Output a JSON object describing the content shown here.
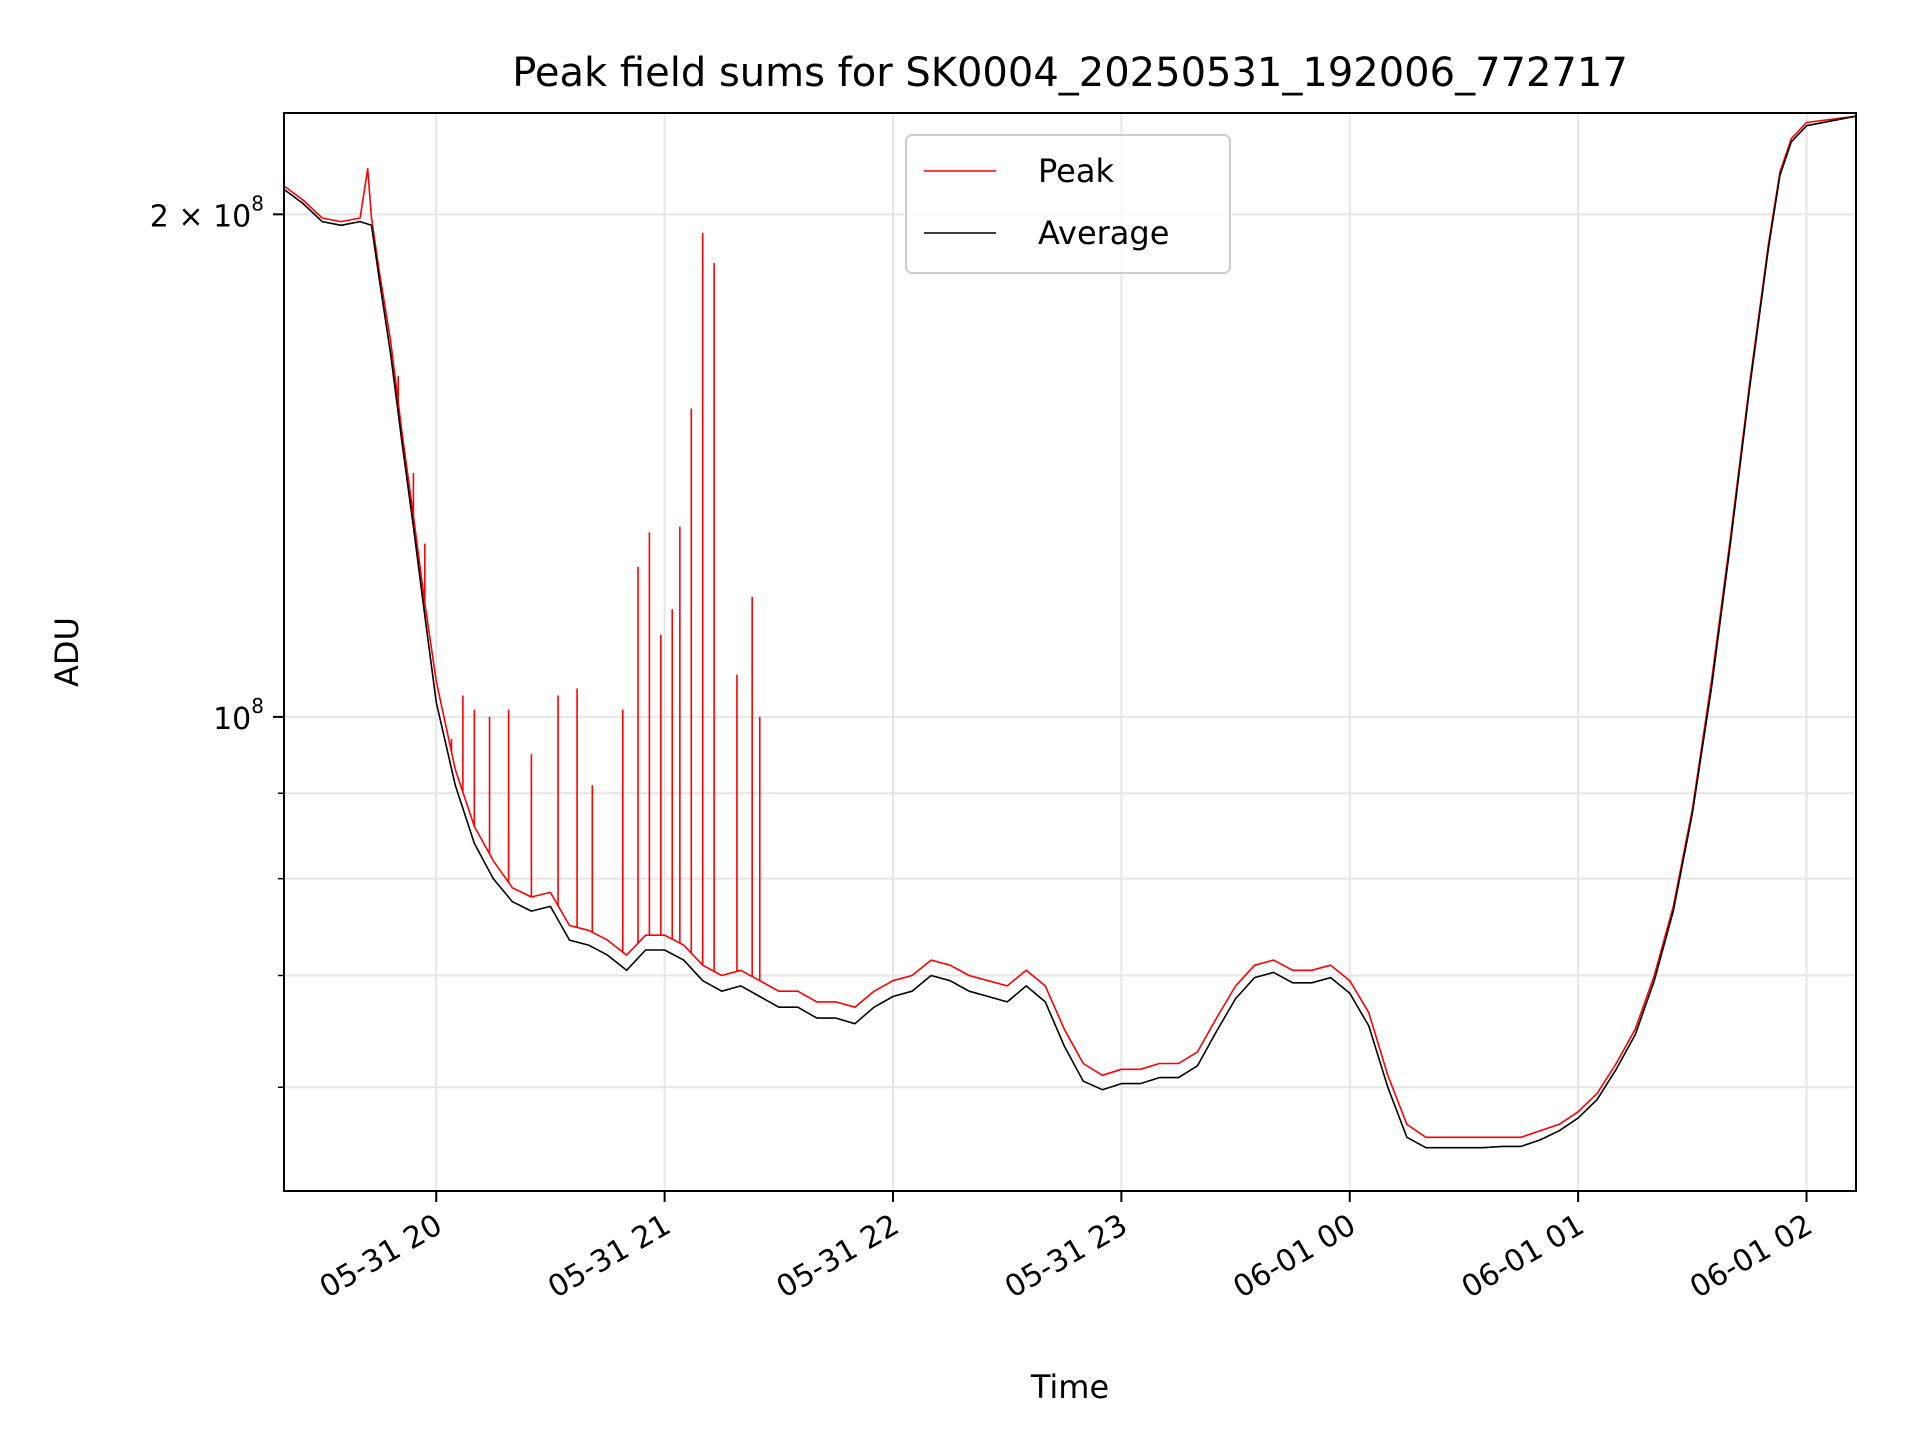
{
  "chart_data": {
    "type": "line",
    "title": "Peak field sums for SK0004_20250531_192006_772717",
    "xlabel": "Time",
    "ylabel": "ADU",
    "y_scale": "log",
    "ylim": [
      52000000,
      230000000
    ],
    "xlim": [
      "2025-05-31 19:20",
      "2025-06-01 02:13"
    ],
    "x_ticks": [
      {
        "value": "2025-05-31 20:00",
        "label": "05-31 20"
      },
      {
        "value": "2025-05-31 21:00",
        "label": "05-31 21"
      },
      {
        "value": "2025-05-31 22:00",
        "label": "05-31 22"
      },
      {
        "value": "2025-05-31 23:00",
        "label": "05-31 23"
      },
      {
        "value": "2025-06-01 00:00",
        "label": "06-01 00"
      },
      {
        "value": "2025-06-01 01:00",
        "label": "06-01 01"
      },
      {
        "value": "2025-06-01 02:00",
        "label": "06-01 02"
      }
    ],
    "y_major_ticks": [
      {
        "value": 100000000,
        "base": "10",
        "exp": "8",
        "coef": ""
      },
      {
        "value": 200000000,
        "base": "10",
        "exp": "8",
        "coef": "2 ×"
      }
    ],
    "y_minor_ticks": [
      60000000,
      70000000,
      80000000,
      90000000
    ],
    "grid": true,
    "legend_position": "top-center",
    "series": [
      {
        "name": "Peak",
        "color": "#ff0000",
        "points": [
          [
            "2025-05-31 19:20",
            208000000
          ],
          [
            "2025-05-31 19:25",
            204000000
          ],
          [
            "2025-05-31 19:30",
            199000000
          ],
          [
            "2025-05-31 19:35",
            198000000
          ],
          [
            "2025-05-31 19:40",
            199000000
          ],
          [
            "2025-05-31 19:42",
            213000000
          ],
          [
            "2025-05-31 19:43",
            199000000
          ],
          [
            "2025-05-31 19:45",
            185000000
          ],
          [
            "2025-05-31 19:48",
            168000000
          ],
          [
            "2025-05-31 19:51",
            148000000
          ],
          [
            "2025-05-31 19:54",
            132000000
          ],
          [
            "2025-05-31 19:57",
            117000000
          ],
          [
            "2025-05-31 20:00",
            105000000
          ],
          [
            "2025-05-31 20:05",
            93000000
          ],
          [
            "2025-05-31 20:10",
            86000000
          ],
          [
            "2025-05-31 20:15",
            82000000
          ],
          [
            "2025-05-31 20:20",
            79000000
          ],
          [
            "2025-05-31 20:25",
            78000000
          ],
          [
            "2025-05-31 20:30",
            78500000
          ],
          [
            "2025-05-31 20:35",
            75000000
          ],
          [
            "2025-05-31 20:40",
            74500000
          ],
          [
            "2025-05-31 20:45",
            73500000
          ],
          [
            "2025-05-31 20:50",
            72000000
          ],
          [
            "2025-05-31 20:55",
            74000000
          ],
          [
            "2025-05-31 21:00",
            74000000
          ],
          [
            "2025-05-31 21:05",
            73000000
          ],
          [
            "2025-05-31 21:10",
            71000000
          ],
          [
            "2025-05-31 21:15",
            70000000
          ],
          [
            "2025-05-31 21:20",
            70500000
          ],
          [
            "2025-05-31 21:25",
            69500000
          ],
          [
            "2025-05-31 21:30",
            68500000
          ],
          [
            "2025-05-31 21:35",
            68500000
          ],
          [
            "2025-05-31 21:40",
            67500000
          ],
          [
            "2025-05-31 21:45",
            67500000
          ],
          [
            "2025-05-31 21:50",
            67000000
          ],
          [
            "2025-05-31 21:55",
            68500000
          ],
          [
            "2025-05-31 22:00",
            69500000
          ],
          [
            "2025-05-31 22:05",
            70000000
          ],
          [
            "2025-05-31 22:10",
            71500000
          ],
          [
            "2025-05-31 22:15",
            71000000
          ],
          [
            "2025-05-31 22:20",
            70000000
          ],
          [
            "2025-05-31 22:25",
            69500000
          ],
          [
            "2025-05-31 22:30",
            69000000
          ],
          [
            "2025-05-31 22:35",
            70500000
          ],
          [
            "2025-05-31 22:40",
            69000000
          ],
          [
            "2025-05-31 22:45",
            65000000
          ],
          [
            "2025-05-31 22:50",
            62000000
          ],
          [
            "2025-05-31 22:55",
            61000000
          ],
          [
            "2025-05-31 23:00",
            61500000
          ],
          [
            "2025-05-31 23:05",
            61500000
          ],
          [
            "2025-05-31 23:10",
            62000000
          ],
          [
            "2025-05-31 23:15",
            62000000
          ],
          [
            "2025-05-31 23:20",
            63000000
          ],
          [
            "2025-05-31 23:25",
            66000000
          ],
          [
            "2025-05-31 23:30",
            69000000
          ],
          [
            "2025-05-31 23:35",
            71000000
          ],
          [
            "2025-05-31 23:40",
            71500000
          ],
          [
            "2025-05-31 23:45",
            70500000
          ],
          [
            "2025-05-31 23:50",
            70500000
          ],
          [
            "2025-05-31 23:55",
            71000000
          ],
          [
            "2025-06-01 00:00",
            69500000
          ],
          [
            "2025-06-01 00:05",
            66500000
          ],
          [
            "2025-06-01 00:10",
            61000000
          ],
          [
            "2025-06-01 00:15",
            57000000
          ],
          [
            "2025-06-01 00:20",
            56000000
          ],
          [
            "2025-06-01 00:25",
            56000000
          ],
          [
            "2025-06-01 00:30",
            56000000
          ],
          [
            "2025-06-01 00:35",
            56000000
          ],
          [
            "2025-06-01 00:40",
            56000000
          ],
          [
            "2025-06-01 00:45",
            56000000
          ],
          [
            "2025-06-01 00:50",
            56500000
          ],
          [
            "2025-06-01 00:55",
            57000000
          ],
          [
            "2025-06-01 01:00",
            58000000
          ],
          [
            "2025-06-01 01:05",
            59500000
          ],
          [
            "2025-06-01 01:10",
            62000000
          ],
          [
            "2025-06-01 01:15",
            65000000
          ],
          [
            "2025-06-01 01:20",
            70000000
          ],
          [
            "2025-06-01 01:25",
            77000000
          ],
          [
            "2025-06-01 01:30",
            88000000
          ],
          [
            "2025-06-01 01:35",
            105000000
          ],
          [
            "2025-06-01 01:40",
            128000000
          ],
          [
            "2025-06-01 01:45",
            158000000
          ],
          [
            "2025-06-01 01:50",
            192000000
          ],
          [
            "2025-06-01 01:53",
            212000000
          ],
          [
            "2025-06-01 01:56",
            222000000
          ],
          [
            "2025-06-01 02:00",
            227000000
          ],
          [
            "2025-06-01 02:13",
            229000000
          ]
        ],
        "spikes": [
          [
            "2025-05-31 19:50",
            160000000
          ],
          [
            "2025-05-31 19:54",
            140000000
          ],
          [
            "2025-05-31 19:57",
            127000000
          ],
          [
            "2025-05-31 20:04",
            97000000
          ],
          [
            "2025-05-31 20:07",
            103000000
          ],
          [
            "2025-05-31 20:10",
            101000000
          ],
          [
            "2025-05-31 20:14",
            100000000
          ],
          [
            "2025-05-31 20:19",
            101000000
          ],
          [
            "2025-05-31 20:25",
            95000000
          ],
          [
            "2025-05-31 20:32",
            103000000
          ],
          [
            "2025-05-31 20:37",
            104000000
          ],
          [
            "2025-05-31 20:41",
            91000000
          ],
          [
            "2025-05-31 20:49",
            101000000
          ],
          [
            "2025-05-31 20:53",
            123000000
          ],
          [
            "2025-05-31 20:56",
            129000000
          ],
          [
            "2025-05-31 20:59",
            112000000
          ],
          [
            "2025-05-31 21:02",
            116000000
          ],
          [
            "2025-05-31 21:04",
            130000000
          ],
          [
            "2025-05-31 21:07",
            153000000
          ],
          [
            "2025-05-31 21:10",
            195000000
          ],
          [
            "2025-05-31 21:13",
            187000000
          ],
          [
            "2025-05-31 21:19",
            106000000
          ],
          [
            "2025-05-31 21:23",
            118000000
          ],
          [
            "2025-05-31 21:25",
            100000000
          ]
        ]
      },
      {
        "name": "Average",
        "color": "#000000",
        "points": [
          [
            "2025-05-31 19:20",
            207000000
          ],
          [
            "2025-05-31 19:25",
            203000000
          ],
          [
            "2025-05-31 19:30",
            198000000
          ],
          [
            "2025-05-31 19:35",
            197000000
          ],
          [
            "2025-05-31 19:40",
            198000000
          ],
          [
            "2025-05-31 19:43",
            197000000
          ],
          [
            "2025-05-31 19:45",
            183000000
          ],
          [
            "2025-05-31 19:48",
            165000000
          ],
          [
            "2025-05-31 19:51",
            146000000
          ],
          [
            "2025-05-31 19:54",
            130000000
          ],
          [
            "2025-05-31 19:57",
            115000000
          ],
          [
            "2025-05-31 20:00",
            102000000
          ],
          [
            "2025-05-31 20:05",
            91000000
          ],
          [
            "2025-05-31 20:10",
            84000000
          ],
          [
            "2025-05-31 20:15",
            80000000
          ],
          [
            "2025-05-31 20:20",
            77500000
          ],
          [
            "2025-05-31 20:25",
            76500000
          ],
          [
            "2025-05-31 20:30",
            77000000
          ],
          [
            "2025-05-31 20:35",
            73500000
          ],
          [
            "2025-05-31 20:40",
            73000000
          ],
          [
            "2025-05-31 20:45",
            72000000
          ],
          [
            "2025-05-31 20:50",
            70500000
          ],
          [
            "2025-05-31 20:55",
            72500000
          ],
          [
            "2025-05-31 21:00",
            72500000
          ],
          [
            "2025-05-31 21:05",
            71500000
          ],
          [
            "2025-05-31 21:10",
            69500000
          ],
          [
            "2025-05-31 21:15",
            68500000
          ],
          [
            "2025-05-31 21:20",
            69000000
          ],
          [
            "2025-05-31 21:25",
            68000000
          ],
          [
            "2025-05-31 21:30",
            67000000
          ],
          [
            "2025-05-31 21:35",
            67000000
          ],
          [
            "2025-05-31 21:40",
            66000000
          ],
          [
            "2025-05-31 21:45",
            66000000
          ],
          [
            "2025-05-31 21:50",
            65500000
          ],
          [
            "2025-05-31 21:55",
            67000000
          ],
          [
            "2025-05-31 22:00",
            68000000
          ],
          [
            "2025-05-31 22:05",
            68500000
          ],
          [
            "2025-05-31 22:10",
            70000000
          ],
          [
            "2025-05-31 22:15",
            69500000
          ],
          [
            "2025-05-31 22:20",
            68500000
          ],
          [
            "2025-05-31 22:25",
            68000000
          ],
          [
            "2025-05-31 22:30",
            67500000
          ],
          [
            "2025-05-31 22:35",
            69000000
          ],
          [
            "2025-05-31 22:40",
            67500000
          ],
          [
            "2025-05-31 22:45",
            63500000
          ],
          [
            "2025-05-31 22:50",
            60500000
          ],
          [
            "2025-05-31 22:55",
            59800000
          ],
          [
            "2025-05-31 23:00",
            60300000
          ],
          [
            "2025-05-31 23:05",
            60300000
          ],
          [
            "2025-05-31 23:10",
            60800000
          ],
          [
            "2025-05-31 23:15",
            60800000
          ],
          [
            "2025-05-31 23:20",
            61800000
          ],
          [
            "2025-05-31 23:25",
            64800000
          ],
          [
            "2025-05-31 23:30",
            67800000
          ],
          [
            "2025-05-31 23:35",
            69800000
          ],
          [
            "2025-05-31 23:40",
            70300000
          ],
          [
            "2025-05-31 23:45",
            69300000
          ],
          [
            "2025-05-31 23:50",
            69300000
          ],
          [
            "2025-05-31 23:55",
            69800000
          ],
          [
            "2025-06-01 00:00",
            68300000
          ],
          [
            "2025-06-01 00:05",
            65300000
          ],
          [
            "2025-06-01 00:10",
            60000000
          ],
          [
            "2025-06-01 00:15",
            56000000
          ],
          [
            "2025-06-01 00:20",
            55200000
          ],
          [
            "2025-06-01 00:25",
            55200000
          ],
          [
            "2025-06-01 00:30",
            55200000
          ],
          [
            "2025-06-01 00:35",
            55200000
          ],
          [
            "2025-06-01 00:40",
            55300000
          ],
          [
            "2025-06-01 00:45",
            55300000
          ],
          [
            "2025-06-01 00:50",
            55800000
          ],
          [
            "2025-06-01 00:55",
            56500000
          ],
          [
            "2025-06-01 01:00",
            57500000
          ],
          [
            "2025-06-01 01:05",
            59000000
          ],
          [
            "2025-06-01 01:10",
            61500000
          ],
          [
            "2025-06-01 01:15",
            64500000
          ],
          [
            "2025-06-01 01:20",
            69500000
          ],
          [
            "2025-06-01 01:25",
            76500000
          ],
          [
            "2025-06-01 01:30",
            87500000
          ],
          [
            "2025-06-01 01:35",
            104000000
          ],
          [
            "2025-06-01 01:40",
            127000000
          ],
          [
            "2025-06-01 01:45",
            157000000
          ],
          [
            "2025-06-01 01:50",
            191000000
          ],
          [
            "2025-06-01 01:53",
            211000000
          ],
          [
            "2025-06-01 01:56",
            221000000
          ],
          [
            "2025-06-01 02:00",
            226000000
          ],
          [
            "2025-06-01 02:13",
            229000000
          ]
        ]
      }
    ]
  }
}
